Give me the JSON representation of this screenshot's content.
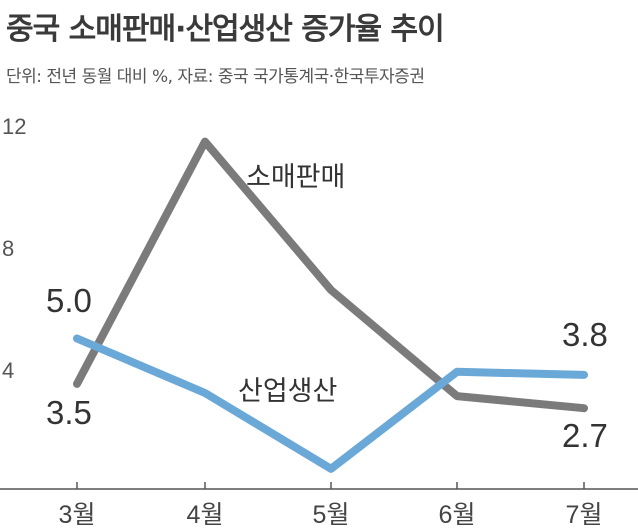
{
  "chart_data": {
    "type": "line",
    "title": "중국 소매판매·산업생산 증가율 추이",
    "subtitle": "단위: 전년 동월 대비 %, 자료: 중국 국가통계국·한국투자증권",
    "categories": [
      "3월",
      "4월",
      "5월",
      "6월",
      "7월"
    ],
    "yticks": [
      "12",
      "8",
      "4"
    ],
    "ylim": [
      0,
      12
    ],
    "series": [
      {
        "name": "소매판매",
        "color": "#7b7b7b",
        "values": [
          3.5,
          11.5,
          6.6,
          3.1,
          2.7
        ],
        "labels": [
          {
            "index": 0,
            "text": "3.5"
          },
          {
            "index": 4,
            "text": "2.7"
          }
        ]
      },
      {
        "name": "산업생산",
        "color": "#6aa8d8",
        "values": [
          5.0,
          3.2,
          0.7,
          3.9,
          3.8
        ],
        "labels": [
          {
            "index": 0,
            "text": "5.0"
          },
          {
            "index": 4,
            "text": "3.8"
          }
        ]
      }
    ],
    "grid": false,
    "legend": "inline"
  }
}
